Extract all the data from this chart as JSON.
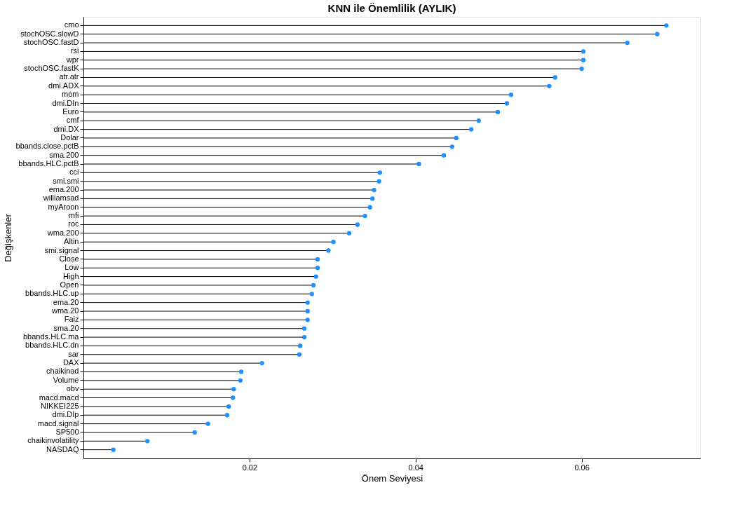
{
  "chart_data": {
    "type": "lollipop",
    "title": "KNN ile Önemlilik (AYLIK)",
    "xlabel": "Önem Seviyesi",
    "ylabel": "Değişkenler",
    "orientation": "horizontal",
    "categories": [
      "cmo",
      "stochOSC.slowD",
      "stochOSC.fastD",
      "rsi",
      "wpr",
      "stochOSC.fastK",
      "atr.atr",
      "dmi.ADX",
      "mom",
      "dmi.DIn",
      "Euro",
      "cmf",
      "dmi.DX",
      "Dolar",
      "bbands.close.pctB",
      "sma.200",
      "bbands.HLC.pctB",
      "cci",
      "smi.smi",
      "ema.200",
      "williamsad",
      "myAroon",
      "mfi",
      "roc",
      "wma.200",
      "Altin",
      "smi.signal",
      "Close",
      "Low",
      "High",
      "Open",
      "bbands.HLC.up",
      "ema.20",
      "wma.20",
      "Faiz",
      "sma.20",
      "bbands.HLC.ma",
      "bbands.HLC.dn",
      "sar",
      "DAX",
      "chaikinad",
      "Volume",
      "obv",
      "macd.macd",
      "NIKKEI225",
      "dmi.DIp",
      "macd.signal",
      "SP500",
      "chaikinvolatility",
      "NASDAQ"
    ],
    "series": [
      {
        "color": "#1e90ff",
        "values": [
          0.0702,
          0.0691,
          0.0655,
          0.0602,
          0.0602,
          0.06,
          0.0568,
          0.0561,
          0.0515,
          0.051,
          0.0499,
          0.0476,
          0.0467,
          0.0449,
          0.0444,
          0.0434,
          0.0404,
          0.0357,
          0.0356,
          0.035,
          0.0348,
          0.0345,
          0.0339,
          0.033,
          0.032,
          0.0301,
          0.0295,
          0.0282,
          0.0282,
          0.028,
          0.0277,
          0.0275,
          0.027,
          0.027,
          0.027,
          0.0266,
          0.0266,
          0.0261,
          0.026,
          0.0215,
          0.019,
          0.0189,
          0.0181,
          0.018,
          0.0175,
          0.0173,
          0.015,
          0.0134,
          0.0077,
          0.0036
        ]
      }
    ],
    "xlim": [
      0,
      0.0743
    ],
    "xticks": [
      0.02,
      0.04,
      0.06
    ],
    "marker": "circle",
    "grid": false
  }
}
